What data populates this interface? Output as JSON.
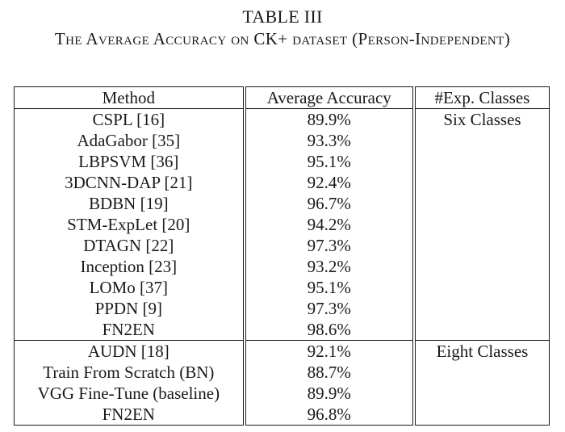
{
  "caption": {
    "label": "TABLE III",
    "title": "The Average Accuracy on CK+ dataset (Person-Independent)"
  },
  "table": {
    "headers": [
      "Method",
      "Average Accuracy",
      "#Exp. Classes"
    ],
    "groups": [
      {
        "classes": "Six Classes",
        "rows": [
          {
            "method": "CSPL [16]",
            "accuracy": "89.9%",
            "bold": false
          },
          {
            "method": "AdaGabor [35]",
            "accuracy": "93.3%",
            "bold": false
          },
          {
            "method": "LBPSVM [36]",
            "accuracy": "95.1%",
            "bold": false
          },
          {
            "method": "3DCNN-DAP [21]",
            "accuracy": "92.4%",
            "bold": false
          },
          {
            "method": "BDBN [19]",
            "accuracy": "96.7%",
            "bold": false
          },
          {
            "method": "STM-ExpLet [20]",
            "accuracy": "94.2%",
            "bold": false
          },
          {
            "method": "DTAGN [22]",
            "accuracy": "97.3%",
            "bold": false
          },
          {
            "method": "Inception [23]",
            "accuracy": "93.2%",
            "bold": false
          },
          {
            "method": "LOMo [37]",
            "accuracy": "95.1%",
            "bold": false
          },
          {
            "method": "PPDN [9]",
            "accuracy": "97.3%",
            "bold": false
          },
          {
            "method": "FN2EN",
            "accuracy": "98.6%",
            "bold": true
          }
        ]
      },
      {
        "classes": "Eight Classes",
        "rows": [
          {
            "method": "AUDN [18]",
            "accuracy": "92.1%",
            "bold": false
          },
          {
            "method": "Train From Scratch (BN)",
            "accuracy": "88.7%",
            "bold": false
          },
          {
            "method": "VGG Fine-Tune (baseline)",
            "accuracy": "89.9%",
            "bold": false
          },
          {
            "method": "FN2EN",
            "accuracy": "96.8%",
            "bold": true
          }
        ]
      }
    ]
  }
}
